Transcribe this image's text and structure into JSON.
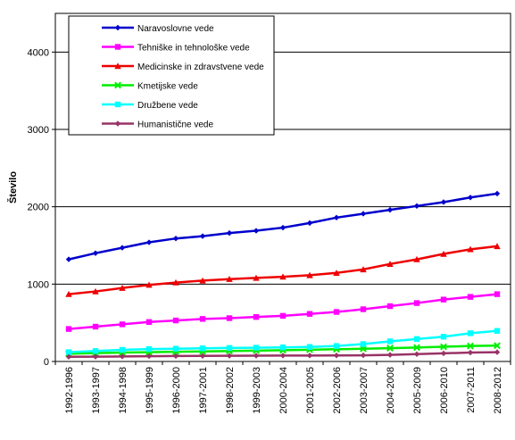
{
  "chart_data": {
    "type": "line",
    "title": "",
    "xlabel": "",
    "ylabel": "Število",
    "ylim": [
      0,
      4500
    ],
    "yticks": [
      0,
      1000,
      2000,
      3000,
      4000
    ],
    "ytick_labels": [
      "0",
      "1000",
      "2000",
      "3000",
      "4000"
    ],
    "grid": "horizontal major gridlines",
    "legend_position": "top-left inside plot",
    "categories": [
      "1992-1996",
      "1993-1997",
      "1994-1998",
      "1995-1999",
      "1996-2000",
      "1997-2001",
      "1998-2002",
      "1999-2003",
      "2000-2004",
      "2001-2005",
      "2002-2006",
      "2003-2007",
      "2004-2008",
      "2005-2009",
      "2006-2010",
      "2007-2011",
      "2008-2012"
    ],
    "series": [
      {
        "name": "Naravoslovne vede",
        "color": "#0000cc",
        "marker": "diamond",
        "values": [
          1320,
          1400,
          1470,
          1540,
          1590,
          1620,
          1660,
          1690,
          1730,
          1790,
          1860,
          1910,
          1960,
          2010,
          2060,
          2120,
          2170
        ]
      },
      {
        "name": "Tehniške in tehnološke vede",
        "color": "#ff00ff",
        "marker": "square",
        "values": [
          420,
          450,
          480,
          510,
          530,
          550,
          560,
          575,
          590,
          615,
          640,
          675,
          715,
          755,
          800,
          835,
          870
        ]
      },
      {
        "name": "Medicinske in zdravstvene vede",
        "color": "#ee0000",
        "marker": "triangle",
        "values": [
          870,
          905,
          950,
          990,
          1020,
          1045,
          1065,
          1080,
          1095,
          1115,
          1145,
          1190,
          1260,
          1320,
          1390,
          1450,
          1490
        ]
      },
      {
        "name": "Kmetijske vede",
        "color": "#00ee00",
        "marker": "x",
        "values": [
          100,
          108,
          115,
          120,
          125,
          130,
          135,
          140,
          145,
          152,
          158,
          165,
          172,
          180,
          190,
          200,
          205
        ]
      },
      {
        "name": "Družbene vede",
        "color": "#00ffff",
        "marker": "square",
        "values": [
          120,
          135,
          150,
          160,
          165,
          170,
          175,
          178,
          182,
          188,
          200,
          225,
          260,
          290,
          320,
          365,
          395
        ]
      },
      {
        "name": "Humanistične vede",
        "color": "#993366",
        "marker": "diamond",
        "values": [
          60,
          62,
          65,
          68,
          70,
          72,
          73,
          75,
          76,
          77,
          78,
          80,
          85,
          95,
          105,
          115,
          120
        ]
      }
    ]
  }
}
